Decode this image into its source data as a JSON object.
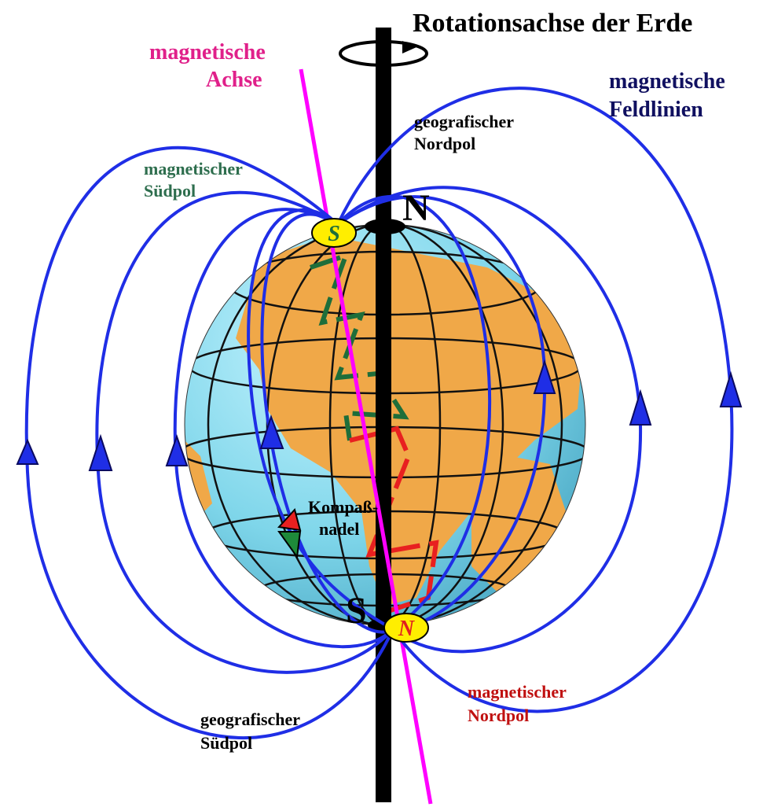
{
  "title": "Rotationsachse der Erde",
  "magnetic_axis": [
    "magnetische",
    "Achse"
  ],
  "field_lines": [
    "magnetische",
    "Feldlinien"
  ],
  "geographic_north": [
    "geografischer",
    "Nordpol"
  ],
  "magnetic_south": [
    "magnetischer",
    "Südpol"
  ],
  "geographic_north_letter": "N",
  "geographic_south_letter": "S",
  "magnetic_south_letter": "S",
  "magnetic_north_letter": "N",
  "compass": [
    "Kompaß-",
    "nadel"
  ],
  "magnetic_north": [
    "magnetischer",
    "Nordpol"
  ],
  "geographic_south": [
    "geografischer",
    "Südpol"
  ]
}
